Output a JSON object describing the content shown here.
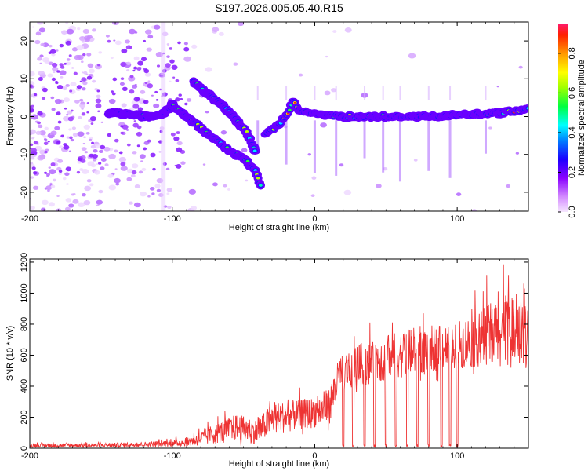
{
  "title": "S197.2026.005.05.40.R15",
  "chart_data": [
    {
      "type": "heatmap",
      "xlabel": "Height of straight line (km)",
      "ylabel": "Frequency (Hz)",
      "xlim": [
        -200,
        150
      ],
      "ylim": [
        -25,
        25
      ],
      "xticks": [
        -200,
        -100,
        0,
        100
      ],
      "yticks": [
        -20,
        -10,
        0,
        10,
        20
      ],
      "colorbar": {
        "label": "Normalized spectral amplitude",
        "range": [
          0,
          0.95
        ],
        "ticks": [
          0.0,
          0.2,
          0.4,
          0.6,
          0.8
        ]
      },
      "ridges": [
        {
          "name": "",
          "points": [
            [
              -145,
              1
            ],
            [
              -130,
              0.5
            ],
            [
              -115,
              0
            ],
            [
              -105,
              1
            ],
            [
              -100,
              3
            ]
          ]
        },
        {
          "name": "",
          "points": [
            [
              -100,
              3
            ],
            [
              -90,
              0
            ],
            [
              -80,
              -3
            ],
            [
              -70,
              -6
            ],
            [
              -60,
              -9
            ],
            [
              -50,
              -11
            ],
            [
              -42,
              -14
            ],
            [
              -38,
              -18
            ]
          ]
        },
        {
          "name": "",
          "points": [
            [
              -85,
              9
            ],
            [
              -75,
              6
            ],
            [
              -65,
              3
            ],
            [
              -55,
              -1
            ],
            [
              -48,
              -4
            ],
            [
              -42,
              -9
            ]
          ]
        },
        {
          "name": "",
          "points": [
            [
              -35,
              -5
            ],
            [
              -28,
              -3
            ],
            [
              -20,
              0
            ],
            [
              -15,
              4
            ],
            [
              -10,
              1
            ],
            [
              0,
              1
            ],
            [
              20,
              0
            ],
            [
              50,
              0
            ],
            [
              80,
              0
            ],
            [
              110,
              0.5
            ],
            [
              130,
              1
            ],
            [
              150,
              2
            ]
          ]
        }
      ],
      "spikes_x": [
        -40,
        -20,
        0,
        15,
        35,
        48,
        60,
        80,
        95,
        120
      ]
    },
    {
      "type": "line",
      "xlabel": "Height of straight line (km)",
      "ylabel": "SNR (10 * v/v)",
      "xlim": [
        -200,
        150
      ],
      "ylim": [
        0,
        1220
      ],
      "xticks": [
        -200,
        -100,
        0,
        100
      ],
      "yticks": [
        0,
        200,
        400,
        600,
        800,
        1000,
        1200
      ],
      "color": "#ee3333",
      "envelope": [
        {
          "x": -200,
          "base": 15,
          "amp": 25
        },
        {
          "x": -160,
          "base": 15,
          "amp": 25
        },
        {
          "x": -120,
          "base": 20,
          "amp": 30
        },
        {
          "x": -90,
          "base": 30,
          "amp": 50
        },
        {
          "x": -75,
          "base": 60,
          "amp": 120
        },
        {
          "x": -55,
          "base": 110,
          "amp": 170
        },
        {
          "x": -40,
          "base": 80,
          "amp": 160
        },
        {
          "x": -30,
          "base": 160,
          "amp": 200
        },
        {
          "x": -15,
          "base": 180,
          "amp": 200
        },
        {
          "x": 0,
          "base": 200,
          "amp": 200
        },
        {
          "x": 10,
          "base": 230,
          "amp": 240
        },
        {
          "x": 18,
          "base": 450,
          "amp": 250
        },
        {
          "x": 40,
          "base": 520,
          "amp": 300
        },
        {
          "x": 70,
          "base": 580,
          "amp": 300
        },
        {
          "x": 100,
          "base": 620,
          "amp": 300
        },
        {
          "x": 130,
          "base": 680,
          "amp": 450
        },
        {
          "x": 150,
          "base": 650,
          "amp": 400
        }
      ],
      "dropouts_x": [
        20,
        27,
        35,
        42,
        50,
        57,
        65,
        72,
        80,
        89,
        95,
        100
      ]
    }
  ]
}
